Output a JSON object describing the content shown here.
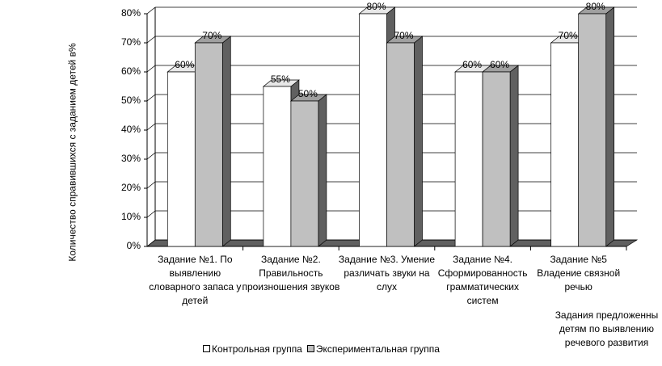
{
  "chart_data": {
    "type": "bar3d",
    "y_axis_label": "Количество справившихся с заданием детей в%",
    "x_axis_label": "Задания предложенны детям по выявлению речевого развития",
    "categories": [
      "Задание №1. По выявлению словарного запаса у детей",
      "Задание №2. Правильность произношения звуков",
      "Задание №3. Умение различать звуки на слух",
      "Задание №4. Сформированность грамматических систем",
      "Задание №5 Владение связной речью"
    ],
    "series": [
      {
        "name": "Контрольная группа",
        "color": "#ffffff",
        "values": [
          60,
          55,
          80,
          60,
          70
        ],
        "value_labels": [
          "60%",
          "55%",
          "80%",
          "60%",
          "70%"
        ]
      },
      {
        "name": "Экспериментальная группа",
        "color": "#c0c0c0",
        "values": [
          70,
          50,
          70,
          60,
          80
        ],
        "value_labels": [
          "70%",
          "50%",
          "70%",
          "60%",
          "80%"
        ]
      }
    ],
    "ylim": [
      0,
      80
    ],
    "yticks": [
      {
        "value": 0,
        "label": "0%"
      },
      {
        "value": 10,
        "label": "10%"
      },
      {
        "value": 20,
        "label": "20%"
      },
      {
        "value": 30,
        "label": "30%"
      },
      {
        "value": 40,
        "label": "40%"
      },
      {
        "value": 50,
        "label": "50%"
      },
      {
        "value": 60,
        "label": "60%"
      },
      {
        "value": 70,
        "label": "70%"
      },
      {
        "value": 80,
        "label": "80%"
      }
    ],
    "grid": true,
    "legend": "bottom"
  }
}
